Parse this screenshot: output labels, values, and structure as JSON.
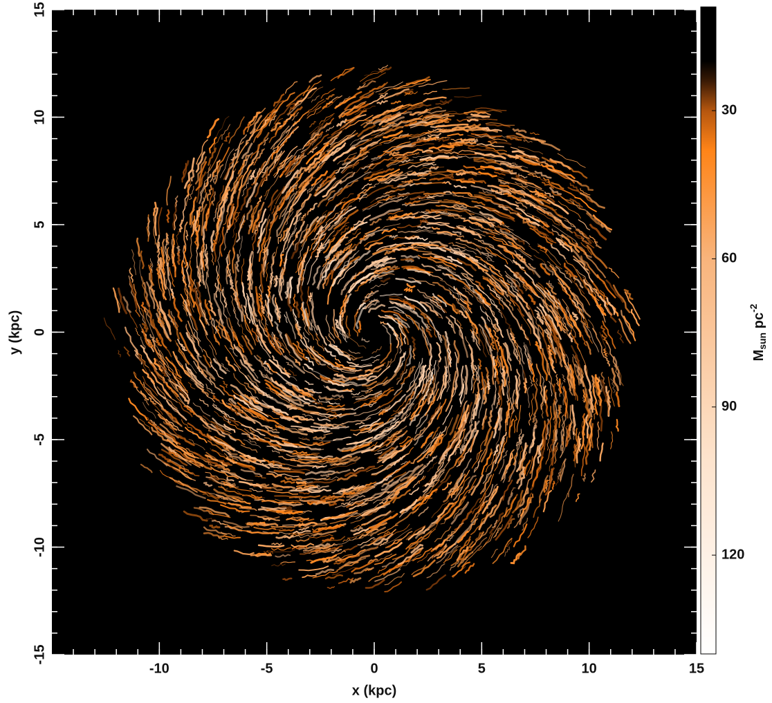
{
  "chart_data": {
    "type": "image",
    "xlabel": "x (kpc)",
    "ylabel": "y (kpc)",
    "xlim": [
      -15,
      15
    ],
    "ylim": [
      -15,
      15
    ],
    "xticks": [
      -10,
      -5,
      0,
      5,
      10,
      15
    ],
    "yticks": [
      -15,
      -10,
      -5,
      0,
      5,
      10,
      15
    ],
    "minor_tick_step": 1,
    "tick_color": "#ffffff",
    "background": "#000000",
    "colorbar": {
      "label": {
        "base": "M",
        "sub": "sun",
        "mid": " pc",
        "sup": "-2"
      },
      "clim": [
        9,
        140
      ],
      "ticks": [
        30,
        60,
        90,
        120
      ],
      "colormap": [
        [
          9,
          "#000000"
        ],
        [
          20,
          "#000000"
        ],
        [
          24,
          "#3a1a05"
        ],
        [
          30,
          "#b5560f"
        ],
        [
          38,
          "#ff8418"
        ],
        [
          60,
          "#f8b47c"
        ],
        [
          100,
          "#fde3cc"
        ],
        [
          140,
          "#ffffff"
        ]
      ]
    }
  }
}
